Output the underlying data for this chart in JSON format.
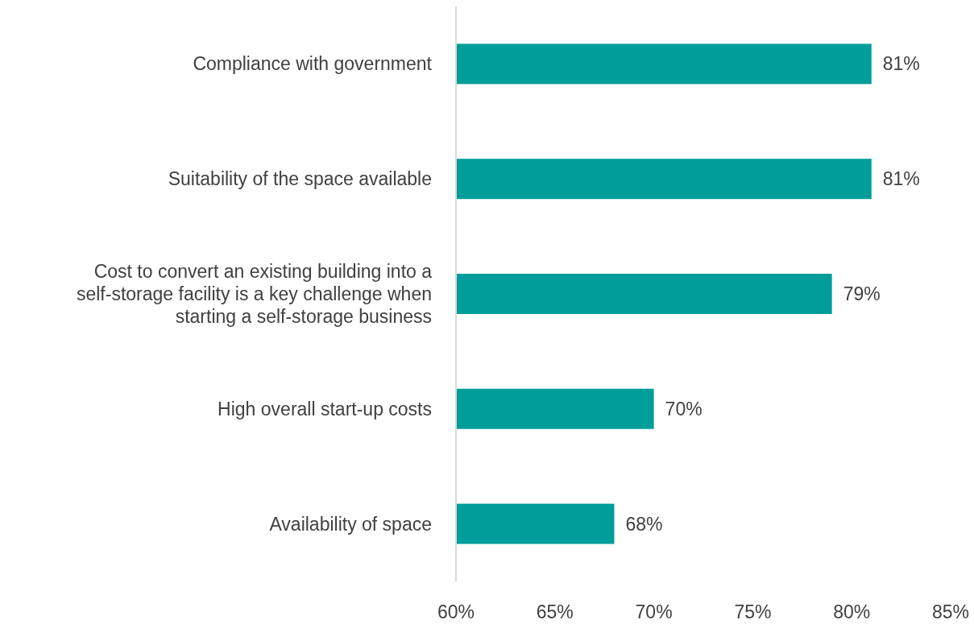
{
  "chart_data": {
    "type": "bar",
    "orientation": "horizontal",
    "categories": [
      "Compliance with government",
      "Suitability of the space available",
      "Cost to convert an existing building into a self-storage facility is a key challenge when starting a self-storage business",
      "High overall start-up costs",
      "Availability of space"
    ],
    "values": [
      81,
      81,
      79,
      70,
      68
    ],
    "value_labels": [
      "81%",
      "81%",
      "79%",
      "70%",
      "68%"
    ],
    "color": "#009e9a",
    "xlim": [
      60,
      85
    ],
    "xticks": [
      {
        "value": 60,
        "label": "60%"
      },
      {
        "value": 65,
        "label": "65%"
      },
      {
        "value": 70,
        "label": "70%"
      },
      {
        "value": 75,
        "label": "75%"
      },
      {
        "value": 80,
        "label": "80%"
      },
      {
        "value": 85,
        "label": "85%"
      }
    ],
    "grid": false
  }
}
